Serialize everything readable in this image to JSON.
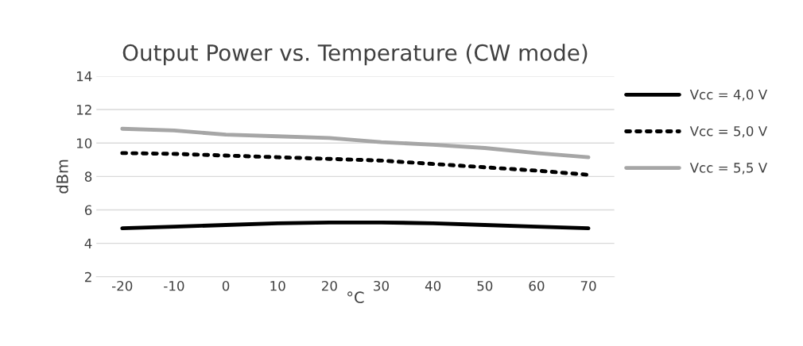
{
  "chart_data": {
    "type": "line",
    "title": "Output Power vs. Temperature (CW mode)",
    "xlabel": "°C",
    "ylabel": "dBm",
    "categories": [
      "-20",
      "-10",
      "0",
      "10",
      "20",
      "30",
      "40",
      "50",
      "60",
      "70"
    ],
    "series": [
      {
        "name": "Vcc = 4,0 V",
        "color": "#000000",
        "line_style": "solid",
        "values": [
          4.9,
          5.0,
          5.1,
          5.2,
          5.25,
          5.25,
          5.2,
          5.1,
          5.0,
          4.9
        ]
      },
      {
        "name": "Vcc = 5,0 V",
        "color": "#000000",
        "line_style": "dotted",
        "values": [
          9.4,
          9.35,
          9.25,
          9.15,
          9.05,
          8.95,
          8.75,
          8.55,
          8.35,
          8.1
        ]
      },
      {
        "name": "Vcc = 5,5 V",
        "color": "#a6a6a6",
        "line_style": "solid",
        "values": [
          10.85,
          10.75,
          10.5,
          10.4,
          10.3,
          10.05,
          9.9,
          9.7,
          9.4,
          9.15
        ]
      }
    ],
    "ylim": [
      2,
      14
    ],
    "yticks": [
      2,
      4,
      6,
      8,
      10,
      12,
      14
    ],
    "grid": "y",
    "legend": "right",
    "marker": "none"
  }
}
